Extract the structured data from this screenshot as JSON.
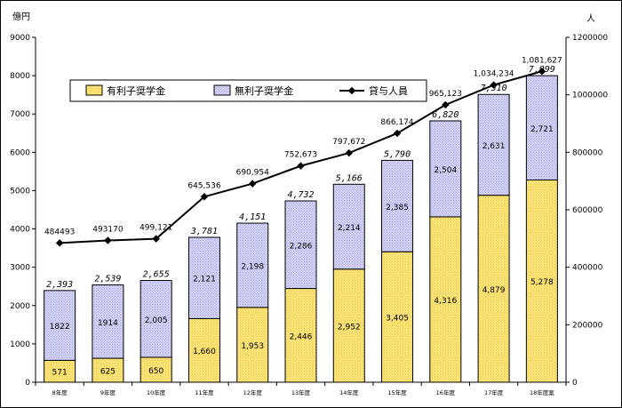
{
  "chart_data": {
    "type": "bar",
    "stacked": true,
    "left_unit": "億円",
    "right_unit": "人",
    "categories": [
      "8年度",
      "9年度",
      "10年度",
      "11年度",
      "12年度",
      "13年度",
      "14年度",
      "15年度",
      "16年度",
      "17年度",
      "18年度案"
    ],
    "series": [
      {
        "name": "有利子奨学金",
        "type": "bar",
        "axis": "left",
        "color": "#fce27a",
        "values": [
          571,
          625,
          650,
          1660,
          1953,
          2446,
          2952,
          3405,
          4316,
          4879,
          5278
        ],
        "labels": [
          "571",
          "625",
          "650",
          "1,660",
          "1,953",
          "2,446",
          "2,952",
          "3,405",
          "4,316",
          "4,879",
          "5,278"
        ]
      },
      {
        "name": "無利子奨学金",
        "type": "bar",
        "axis": "left",
        "color": "#c9c9f2",
        "values": [
          1822,
          1914,
          2005,
          2121,
          2198,
          2286,
          2214,
          2385,
          2504,
          2631,
          2721
        ],
        "labels": [
          "1822",
          "1914",
          "2,005",
          "2,121",
          "2,198",
          "2,286",
          "2,214",
          "2,385",
          "2,504",
          "2,631",
          "2,721"
        ]
      },
      {
        "name": "貸与人員",
        "type": "line",
        "axis": "right",
        "color": "#000000",
        "values": [
          484493,
          493170,
          499121,
          645536,
          690954,
          752673,
          797672,
          866174,
          965123,
          1034234,
          1081627
        ],
        "labels": [
          "484493",
          "493170",
          "499,121",
          "645,536",
          "690,954",
          "752,673",
          "797,672",
          "866,174",
          "965,123",
          "1,034,234",
          "1,081,627"
        ]
      }
    ],
    "totals": [
      2393,
      2539,
      2655,
      3781,
      4151,
      4732,
      5166,
      5790,
      6820,
      7510,
      7999
    ],
    "total_labels": [
      "2,393",
      "2,539",
      "2,655",
      "3,781",
      "4,151",
      "4,732",
      "5,166",
      "5,790",
      "6,820",
      "7,510",
      "7,999"
    ],
    "left_axis": {
      "min": 0,
      "max": 9000,
      "step": 1000,
      "tick_labels": [
        "0",
        "1000",
        "2000",
        "3000",
        "4000",
        "5000",
        "6000",
        "7000",
        "8000",
        "9000"
      ]
    },
    "right_axis": {
      "min": 0,
      "max": 1200000,
      "step": 200000,
      "tick_labels": [
        "0",
        "200000",
        "400000",
        "600000",
        "800000",
        "1000000",
        "1200000"
      ]
    },
    "legend_position": "top-left",
    "grid": false
  }
}
